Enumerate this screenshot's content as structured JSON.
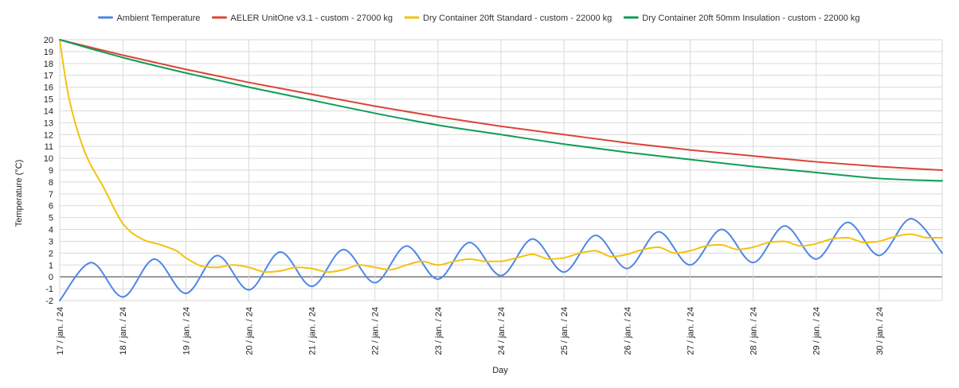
{
  "chart_data": {
    "type": "line",
    "xlabel": "Day",
    "ylabel": "Temperature (°C)",
    "ylim": [
      -2,
      20
    ],
    "xlim": [
      0,
      14
    ],
    "y_ticks": [
      "-2",
      "-1",
      "0",
      "1",
      "2",
      "3",
      "4",
      "5",
      "6",
      "7",
      "8",
      "9",
      "10",
      "11",
      "12",
      "13",
      "14",
      "15",
      "16",
      "17",
      "18",
      "19",
      "20"
    ],
    "x_ticks": [
      "17 / jan. / 24",
      "18 / jan. / 24",
      "19 / jan. / 24",
      "20 / jan. / 24",
      "21 / jan. / 24",
      "22 / jan. / 24",
      "23 / jan. / 24",
      "24 / jan. / 24",
      "25 / jan. / 24",
      "26 / jan. / 24",
      "27 / jan. / 24",
      "28 / jan. / 24",
      "29 / jan. / 24",
      "30 / jan. / 24"
    ],
    "legend_position": "top",
    "grid": true,
    "series": [
      {
        "name": "Ambient Temperature",
        "color": "#4f86e7",
        "x": [
          0,
          0.5,
          1,
          1.5,
          2,
          2.5,
          3,
          3.5,
          4,
          4.5,
          5,
          5.5,
          6,
          6.5,
          7,
          7.5,
          8,
          8.5,
          9,
          9.5,
          10,
          10.5,
          11,
          11.5,
          12,
          12.5,
          13,
          13.5,
          14
        ],
        "y": [
          -2,
          1.2,
          -1.7,
          1.5,
          -1.4,
          1.8,
          -1.1,
          2.1,
          -0.8,
          2.3,
          -0.5,
          2.6,
          -0.2,
          2.9,
          0.1,
          3.2,
          0.4,
          3.5,
          0.7,
          3.8,
          1.0,
          4.0,
          1.2,
          4.3,
          1.5,
          4.6,
          1.8,
          4.9,
          2.0
        ]
      },
      {
        "name": "AELER UnitOne v3.1 - custom - 27000 kg",
        "color": "#db4437",
        "x": [
          0,
          1,
          2,
          3,
          4,
          5,
          6,
          7,
          8,
          9,
          10,
          11,
          12,
          13,
          14
        ],
        "y": [
          20,
          18.7,
          17.5,
          16.4,
          15.4,
          14.4,
          13.5,
          12.7,
          12.0,
          11.3,
          10.7,
          10.2,
          9.7,
          9.3,
          9.0
        ]
      },
      {
        "name": "Dry Container 20ft Standard - custom - 22000 kg",
        "color": "#f4c20d",
        "x": [
          0,
          0.15,
          0.4,
          0.7,
          1,
          1.3,
          1.6,
          1.85,
          2,
          2.25,
          2.5,
          2.75,
          3,
          3.25,
          3.5,
          3.75,
          4,
          4.25,
          4.5,
          4.75,
          5,
          5.25,
          5.5,
          5.75,
          6,
          6.25,
          6.5,
          6.75,
          7,
          7.25,
          7.5,
          7.75,
          8,
          8.25,
          8.5,
          8.75,
          9,
          9.25,
          9.5,
          9.75,
          10,
          10.25,
          10.5,
          10.75,
          11,
          11.25,
          11.5,
          11.75,
          12,
          12.25,
          12.5,
          12.75,
          13,
          13.25,
          13.5,
          13.75,
          14
        ],
        "y": [
          20,
          15,
          10.5,
          7.5,
          4.5,
          3.2,
          2.7,
          2.2,
          1.6,
          0.9,
          0.8,
          1.0,
          0.8,
          0.4,
          0.5,
          0.8,
          0.7,
          0.4,
          0.6,
          1.0,
          0.8,
          0.6,
          1.0,
          1.3,
          1.0,
          1.3,
          1.5,
          1.3,
          1.3,
          1.6,
          1.9,
          1.5,
          1.6,
          2.0,
          2.2,
          1.7,
          1.9,
          2.3,
          2.5,
          2.0,
          2.2,
          2.6,
          2.7,
          2.3,
          2.5,
          2.9,
          3.0,
          2.6,
          2.8,
          3.2,
          3.3,
          2.9,
          3.0,
          3.4,
          3.6,
          3.3,
          3.3
        ]
      },
      {
        "name": "Dry Container 20ft 50mm Insulation - custom - 22000 kg",
        "color": "#0f9d58",
        "x": [
          0,
          1,
          2,
          3,
          4,
          5,
          6,
          7,
          8,
          9,
          10,
          11,
          12,
          13,
          14
        ],
        "y": [
          20,
          18.5,
          17.2,
          16.0,
          14.9,
          13.8,
          12.8,
          12.0,
          11.2,
          10.5,
          9.9,
          9.3,
          8.8,
          8.3,
          8.1
        ]
      }
    ]
  }
}
